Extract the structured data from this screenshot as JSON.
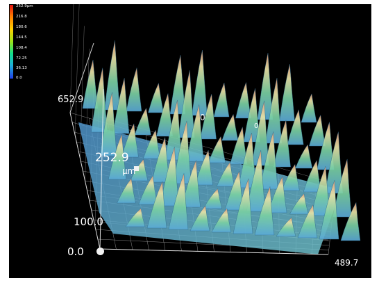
{
  "legend": {
    "labels": [
      "252.9μm",
      "216.8",
      "180.6",
      "144.5",
      "108.4",
      "72.25",
      "36.13",
      "0.0"
    ]
  },
  "axes": {
    "y_far": "652.9",
    "z_top": "252.9",
    "z_unit": "μm",
    "z_mid": "100.0",
    "origin": "0.0",
    "x_end": "489.7",
    "partial_a": "0",
    "partial_b": "0"
  },
  "colors": {
    "background": "#000000",
    "frame": "#ffffff",
    "grid": "#8a8a8a",
    "surface_low": "#6ab2d8",
    "surface_mid": "#7ccd9c",
    "surface_high": "#e7dfa0",
    "peak": "#e2a27a"
  }
}
